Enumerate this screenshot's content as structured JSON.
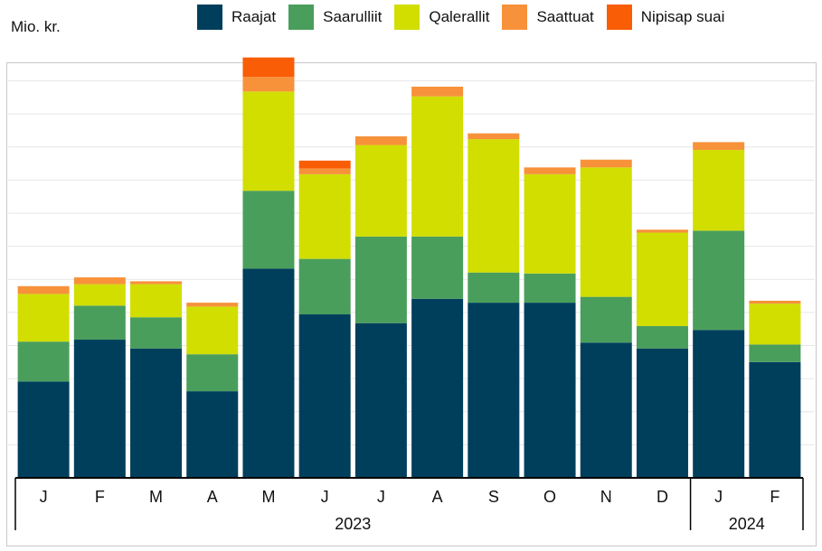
{
  "chart_data": {
    "type": "bar",
    "stacked": true,
    "unit_label": "Mio. kr.",
    "categories": [
      "J",
      "F",
      "M",
      "A",
      "M",
      "J",
      "J",
      "A",
      "S",
      "O",
      "N",
      "D",
      "J",
      "F"
    ],
    "category_years": [
      "2023",
      "2023",
      "2023",
      "2023",
      "2023",
      "2023",
      "2023",
      "2023",
      "2023",
      "2023",
      "2023",
      "2023",
      "2024",
      "2024"
    ],
    "year_groups": [
      {
        "label": "2023",
        "count": 12
      },
      {
        "label": "2024",
        "count": 2
      }
    ],
    "series": [
      {
        "name": "Raajat",
        "color": "#003f5c",
        "values": [
          99,
          142,
          133,
          89,
          215,
          168,
          159,
          184,
          180,
          180,
          139,
          133,
          152,
          119
        ]
      },
      {
        "name": "Saarulliit",
        "color": "#4a9e5c",
        "values": [
          41,
          35,
          32,
          38,
          80,
          57,
          89,
          64,
          31,
          30,
          47,
          23,
          102,
          18
        ]
      },
      {
        "name": "Qalerallit",
        "color": "#d1de00",
        "values": [
          49,
          22,
          34,
          49,
          102,
          87,
          94,
          144,
          137,
          102,
          133,
          96,
          83,
          42
        ]
      },
      {
        "name": "Saattuat",
        "color": "#f7923a",
        "values": [
          8,
          7,
          3,
          4,
          15,
          6,
          9,
          10,
          6,
          7,
          8,
          3,
          8,
          3
        ]
      },
      {
        "name": "Nipisap suai",
        "color": "#f95d06",
        "values": [
          0,
          0,
          0,
          0,
          20,
          8,
          0,
          0,
          0,
          0,
          0,
          0,
          0,
          0
        ]
      }
    ],
    "ylim": [
      0,
      440
    ],
    "y_gridline_step": 34,
    "grid": true,
    "legend_position": "top",
    "xlabel": "",
    "ylabel": ""
  }
}
